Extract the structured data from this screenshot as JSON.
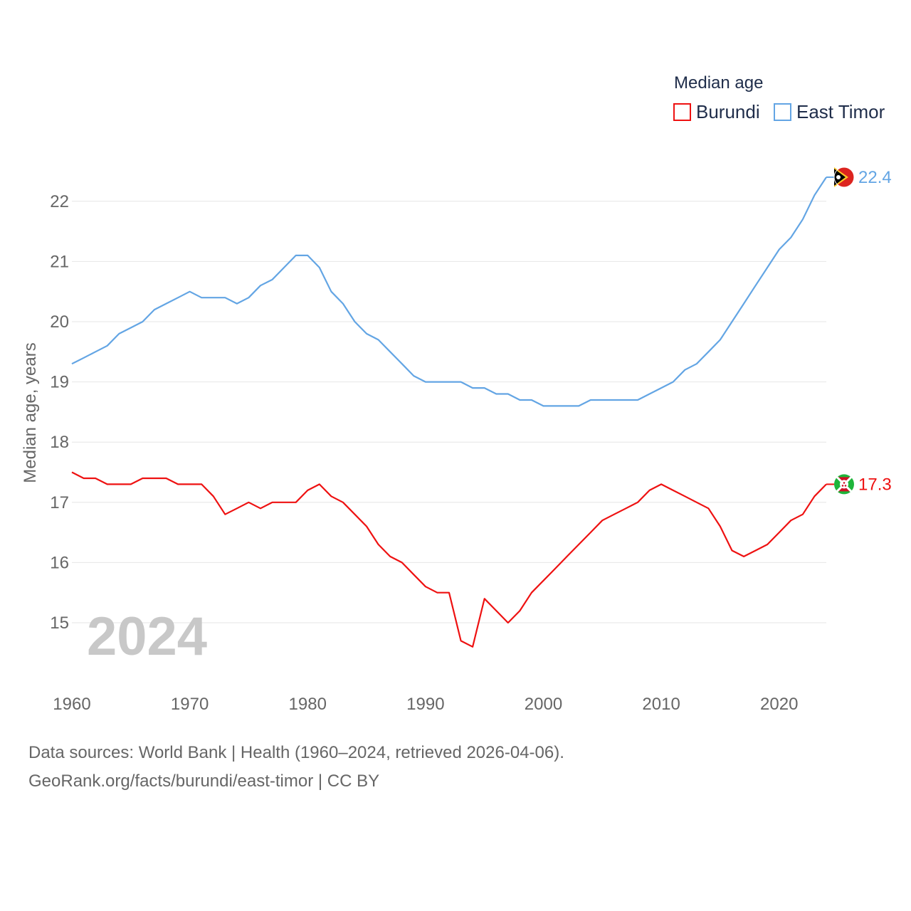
{
  "chart_data": {
    "type": "line",
    "legend_title": "Median age",
    "ylabel": "Median age, years",
    "xlabel": "",
    "ylim": [
      14.2,
      22.6
    ],
    "xlim": [
      1960,
      2024
    ],
    "y_ticks": [
      15,
      16,
      17,
      18,
      19,
      20,
      21,
      22
    ],
    "x_ticks": [
      1960,
      1970,
      1980,
      1990,
      2000,
      2010,
      2020
    ],
    "grid": true,
    "legend_position": "top-right",
    "highlight_year": "2024",
    "x": [
      1960,
      1961,
      1962,
      1963,
      1964,
      1965,
      1966,
      1967,
      1968,
      1969,
      1970,
      1971,
      1972,
      1973,
      1974,
      1975,
      1976,
      1977,
      1978,
      1979,
      1980,
      1981,
      1982,
      1983,
      1984,
      1985,
      1986,
      1987,
      1988,
      1989,
      1990,
      1991,
      1992,
      1993,
      1994,
      1995,
      1996,
      1997,
      1998,
      1999,
      2000,
      2001,
      2002,
      2003,
      2004,
      2005,
      2006,
      2007,
      2008,
      2009,
      2010,
      2011,
      2012,
      2013,
      2014,
      2015,
      2016,
      2017,
      2018,
      2019,
      2020,
      2021,
      2022,
      2023,
      2024
    ],
    "series": [
      {
        "name": "Burundi",
        "color": "#ee1111",
        "end_label": "17.3",
        "flag": "burundi-flag",
        "values": [
          17.5,
          17.4,
          17.4,
          17.3,
          17.3,
          17.3,
          17.4,
          17.4,
          17.4,
          17.3,
          17.3,
          17.3,
          17.1,
          16.8,
          16.9,
          17.0,
          16.9,
          17.0,
          17.0,
          17.0,
          17.2,
          17.3,
          17.1,
          17.0,
          16.8,
          16.6,
          16.3,
          16.1,
          16.0,
          15.8,
          15.6,
          15.5,
          15.5,
          14.7,
          14.6,
          15.4,
          15.2,
          15.0,
          15.2,
          15.5,
          15.7,
          15.9,
          16.1,
          16.3,
          16.5,
          16.7,
          16.8,
          16.9,
          17.0,
          17.2,
          17.3,
          17.2,
          17.1,
          17.0,
          16.9,
          16.6,
          16.2,
          16.1,
          16.2,
          16.3,
          16.5,
          16.7,
          16.8,
          17.1,
          17.3
        ]
      },
      {
        "name": "East Timor",
        "color": "#63a5e4",
        "end_label": "22.4",
        "flag": "east-timor-flag",
        "values": [
          19.3,
          19.4,
          19.5,
          19.6,
          19.8,
          19.9,
          20.0,
          20.2,
          20.3,
          20.4,
          20.5,
          20.4,
          20.4,
          20.4,
          20.3,
          20.4,
          20.6,
          20.7,
          20.9,
          21.1,
          21.1,
          20.9,
          20.5,
          20.3,
          20.0,
          19.8,
          19.7,
          19.5,
          19.3,
          19.1,
          19.0,
          19.0,
          19.0,
          19.0,
          18.9,
          18.9,
          18.8,
          18.8,
          18.7,
          18.7,
          18.6,
          18.6,
          18.6,
          18.6,
          18.7,
          18.7,
          18.7,
          18.7,
          18.7,
          18.8,
          18.9,
          19.0,
          19.2,
          19.3,
          19.5,
          19.7,
          20.0,
          20.3,
          20.6,
          20.9,
          21.2,
          21.4,
          21.7,
          22.1,
          22.4
        ]
      }
    ]
  },
  "footer": {
    "sources": "Data sources: World Bank | Health (1960–2024, retrieved 2026-04-06).",
    "credit": "GeoRank.org/facts/burundi/east-timor | CC BY"
  }
}
